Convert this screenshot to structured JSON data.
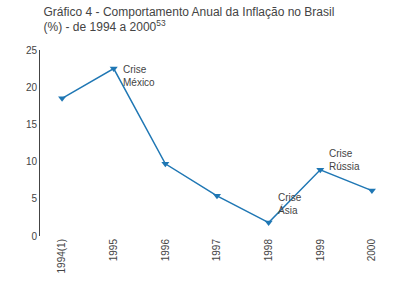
{
  "chart_data": {
    "type": "line",
    "title": "Gráfico 4 - Comportamento Anual da Inflação no Brasil",
    "subtitle": "(%) - de 1994 a 2000",
    "categories": [
      "1994(1)",
      "1995",
      "1996",
      "1997",
      "1998",
      "1999",
      "2000"
    ],
    "values": [
      18.5,
      22.5,
      9.7,
      5.4,
      1.8,
      8.9,
      6.1
    ],
    "ylim": [
      0,
      25
    ],
    "yticks": [
      0,
      5,
      10,
      15,
      20,
      25
    ],
    "grid": false,
    "marker": "triangle-down",
    "annotations": [
      {
        "text": "53"
      },
      {
        "text": "Crise\nMéxico",
        "x": "1995",
        "y": 22.5
      },
      {
        "text": "Crise\nÁsia",
        "x": "1998",
        "y": 1.8
      },
      {
        "text": "Crise\nRússia",
        "x": "1999",
        "y": 8.9
      }
    ]
  }
}
